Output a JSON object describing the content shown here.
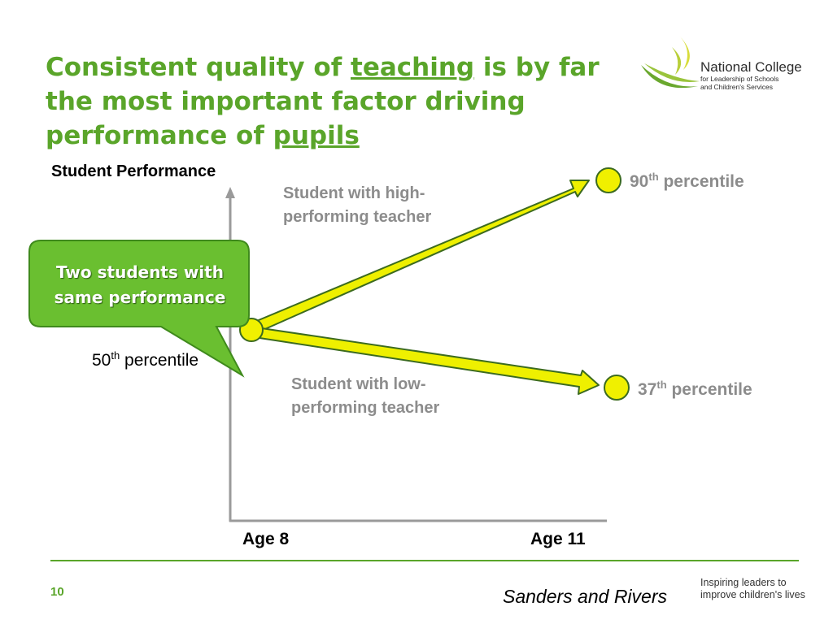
{
  "slide": {
    "title_part1": "Consistent quality of ",
    "title_link1": "teaching",
    "title_part2": " is by far the most important factor driving performance of ",
    "title_link2": "pupils",
    "logo": {
      "name": "National College",
      "subtitle": "for Leadership of Schools and Children's Services"
    },
    "diagram": {
      "y_axis_label": "Student Performance",
      "x_labels": [
        "Age 8",
        "Age 11"
      ],
      "start": {
        "number": "50",
        "suffix": "th",
        "text": " percentile"
      },
      "high_end": {
        "number": "90",
        "suffix": "th",
        "text": " percentile"
      },
      "low_end": {
        "number": "37",
        "suffix": "th",
        "text": " percentile"
      },
      "high_note": "Student with high-performing teacher",
      "low_note": "Student with low-performing teacher",
      "callout": "Two students with same performance"
    },
    "footer": {
      "page_number": "10",
      "source": "Sanders and Rivers",
      "tagline": "Inspiring leaders to improve children's lives"
    },
    "colors": {
      "brand_green": "#5aa52a",
      "arrow_fill": "#eef000",
      "callout_green": "#6abf30",
      "grey_text": "#8c8c8c"
    }
  }
}
